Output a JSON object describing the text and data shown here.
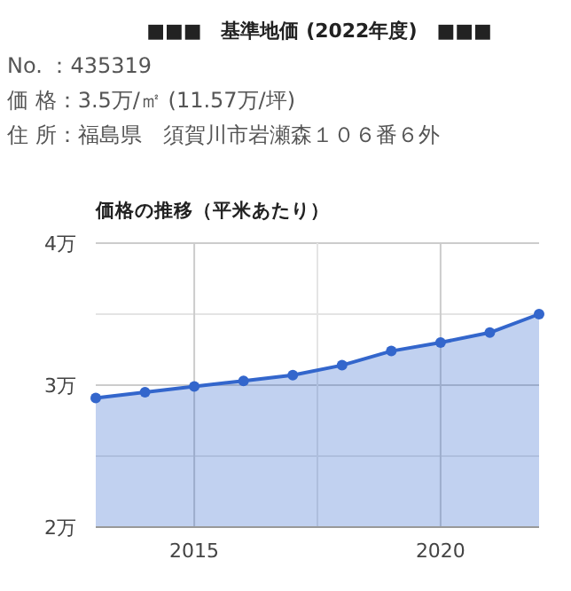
{
  "chart_data": {
    "type": "area",
    "title": "■■■　基準地価 (2022年度)　■■■",
    "subtitle": "価格の推移（平米あたり）",
    "annotations": [
      "No. ：435319",
      "価 格：3.5万/㎡ (11.57万/坪)",
      "住 所：福島県　須賀川市岩瀬森１０６番６外"
    ],
    "x": [
      2013,
      2014,
      2015,
      2016,
      2017,
      2018,
      2019,
      2020,
      2021,
      2022
    ],
    "series": [
      {
        "color": "#3366cc",
        "values": [
          2.91,
          2.95,
          2.99,
          3.03,
          3.07,
          3.14,
          3.24,
          3.3,
          3.37,
          3.5
        ]
      }
    ],
    "xlim": [
      2013,
      2022
    ],
    "xticks": [
      2015,
      {
        "value": 2017.5,
        "label": null
      },
      2020
    ],
    "ylim": [
      2,
      4
    ],
    "yticks": [
      {
        "value": 2,
        "label": "2万"
      },
      {
        "value": 2.5,
        "label": null
      },
      {
        "value": 3,
        "label": "3万"
      },
      {
        "value": 3.5,
        "label": null
      },
      {
        "value": 4,
        "label": "4万"
      }
    ],
    "grid": true,
    "marker": "circle",
    "line_style": "solid"
  }
}
